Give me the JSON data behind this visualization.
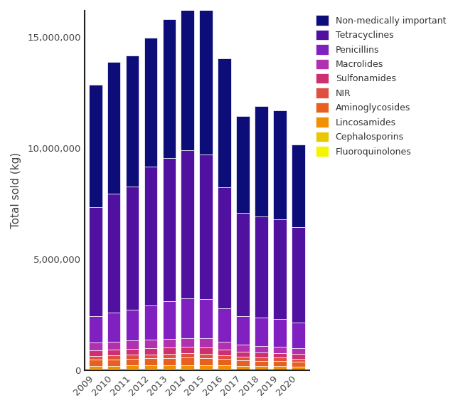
{
  "years": [
    "2009",
    "2010",
    "2011",
    "2012",
    "2013",
    "2014",
    "2015",
    "2016",
    "2017",
    "2018",
    "2019",
    "2020"
  ],
  "categories": [
    "Fluoroquinolones",
    "Cephalosporins",
    "Lincosamides",
    "Aminoglycosides",
    "NIR",
    "Sulfonamides",
    "Macrolides",
    "Penicillins",
    "Tetracyclines",
    "Non-medically important"
  ],
  "colors": [
    "#f5f500",
    "#e8c800",
    "#f09000",
    "#e86020",
    "#e05040",
    "#cc3070",
    "#b030b0",
    "#8020c0",
    "#5010a0",
    "#0d0d7a"
  ],
  "data": {
    "Fluoroquinolones": [
      10000,
      10000,
      10000,
      10000,
      10000,
      10000,
      10000,
      10000,
      10000,
      10000,
      10000,
      10000
    ],
    "Cephalosporins": [
      40000,
      42000,
      44000,
      46000,
      48000,
      50000,
      48000,
      40000,
      35000,
      32000,
      30000,
      28000
    ],
    "Lincosamides": [
      150000,
      155000,
      160000,
      165000,
      170000,
      175000,
      175000,
      160000,
      145000,
      140000,
      138000,
      130000
    ],
    "Aminoglycosides": [
      280000,
      290000,
      300000,
      310000,
      320000,
      330000,
      325000,
      290000,
      260000,
      250000,
      245000,
      230000
    ],
    "NIR": [
      170000,
      175000,
      180000,
      185000,
      190000,
      195000,
      190000,
      170000,
      150000,
      145000,
      140000,
      130000
    ],
    "Sulfonamides": [
      250000,
      260000,
      270000,
      275000,
      280000,
      285000,
      280000,
      255000,
      225000,
      215000,
      210000,
      200000
    ],
    "Macrolides": [
      350000,
      360000,
      375000,
      390000,
      400000,
      410000,
      405000,
      360000,
      315000,
      305000,
      298000,
      280000
    ],
    "Penicillins": [
      1200000,
      1300000,
      1380000,
      1550000,
      1700000,
      1800000,
      1780000,
      1500000,
      1300000,
      1270000,
      1240000,
      1150000
    ],
    "Tetracyclines": [
      4900000,
      5350000,
      5550000,
      6250000,
      6450000,
      6650000,
      6500000,
      5450000,
      4650000,
      4550000,
      4500000,
      4300000
    ],
    "Non-medically important": [
      5500000,
      5950000,
      5900000,
      5800000,
      6250000,
      6500000,
      7800000,
      5800000,
      4350000,
      5000000,
      4900000,
      3700000
    ]
  },
  "ylabel": "Total sold (kg)",
  "ylim": [
    0,
    16200000
  ],
  "yticks": [
    0,
    5000000,
    10000000,
    15000000
  ],
  "background_color": "#ffffff",
  "bar_edge_color": "#ffffff",
  "bar_linewidth": 0.5
}
